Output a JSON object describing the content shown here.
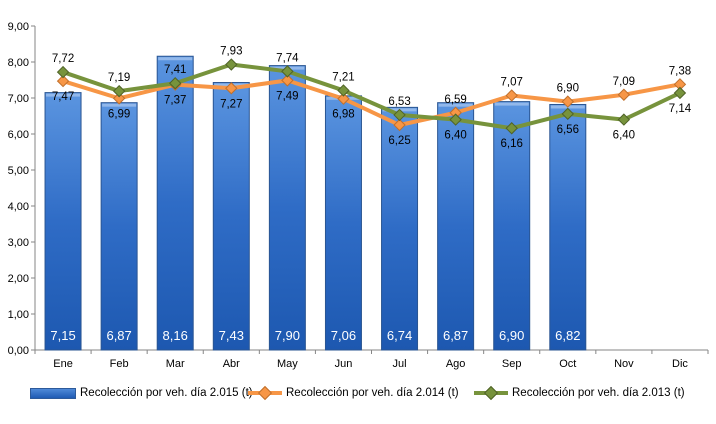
{
  "chart_data": {
    "type": "bar+line",
    "categories": [
      "Ene",
      "Feb",
      "Mar",
      "Abr",
      "May",
      "Jun",
      "Jul",
      "Ago",
      "Sep",
      "Oct",
      "Nov",
      "Dic"
    ],
    "ylim": [
      0,
      9
    ],
    "yticks": [
      "0,00",
      "1,00",
      "2,00",
      "3,00",
      "4,00",
      "5,00",
      "6,00",
      "7,00",
      "8,00",
      "9,00"
    ],
    "grid": false,
    "legend_position": "bottom",
    "series": [
      {
        "name": "Recolección por veh. día 2.015 (t)",
        "type": "bar",
        "color": "#2e6bc4",
        "values": [
          7.15,
          6.87,
          8.16,
          7.43,
          7.9,
          7.06,
          6.74,
          6.87,
          6.9,
          6.82,
          null,
          null
        ],
        "labels": [
          "7,15",
          "6,87",
          "8,16",
          "7,43",
          "7,90",
          "7,06",
          "6,74",
          "6,87",
          "6,90",
          "6,82",
          "",
          ""
        ]
      },
      {
        "name": "Recolección por veh. día 2.014 (t)",
        "type": "line",
        "color": "#f79646",
        "values": [
          7.47,
          6.99,
          7.37,
          7.27,
          7.49,
          6.98,
          6.25,
          6.59,
          7.07,
          6.9,
          7.09,
          7.38
        ],
        "labels": [
          "7,47",
          "6,99",
          "7,37",
          "7,27",
          "7,49",
          "6,98",
          "6,25",
          "6,59",
          "7,07",
          "6,90",
          "7,09",
          "7,38"
        ]
      },
      {
        "name": "Recolección por veh. día 2.013 (t)",
        "type": "line",
        "color": "#77933c",
        "values": [
          7.72,
          7.19,
          7.41,
          7.93,
          7.74,
          7.21,
          6.53,
          6.4,
          6.16,
          6.56,
          6.4,
          7.14
        ],
        "labels": [
          "7,72",
          "7,19",
          "7,41",
          "7,93",
          "7,74",
          "7,21",
          "6,53",
          "6,40",
          "6,16",
          "6,56",
          "6,40",
          "7,14"
        ]
      }
    ]
  }
}
